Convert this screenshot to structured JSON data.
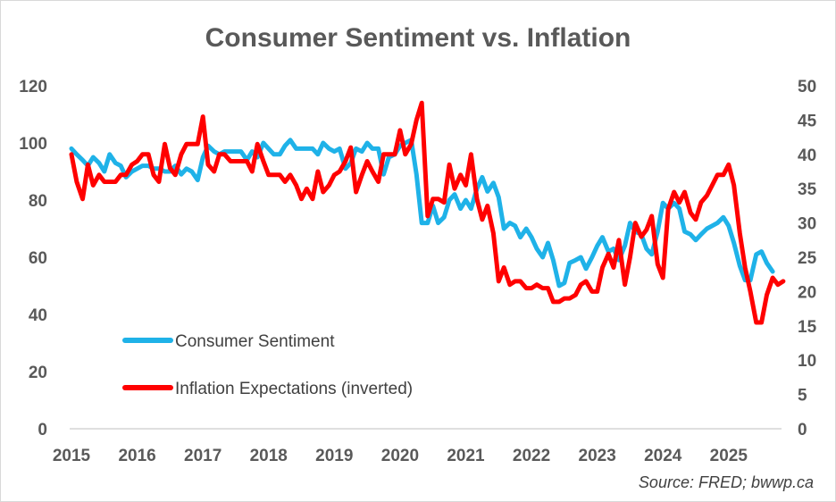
{
  "chart_data": {
    "type": "line",
    "title": "Consumer Sentiment vs. Inflation",
    "source": "Source: FRED; bwwp.ca",
    "x_ticks": [
      "2015",
      "2016",
      "2017",
      "2018",
      "2019",
      "2020",
      "2021",
      "2022",
      "2023",
      "2024",
      "2025"
    ],
    "y_left_ticks": [
      "0",
      "20",
      "40",
      "60",
      "80",
      "100",
      "120"
    ],
    "y_right_ticks": [
      "0",
      "5",
      "10",
      "15",
      "20",
      "25",
      "30",
      "35",
      "40",
      "45",
      "50"
    ],
    "ylim_left": [
      0,
      120
    ],
    "ylim_right": [
      0,
      50
    ],
    "xlim": [
      2015.0,
      2025.75
    ],
    "series": [
      {
        "name": "Consumer Sentiment",
        "axis": "left",
        "color": "#1fb2e8",
        "points": [
          [
            2015.0,
            98
          ],
          [
            2015.08,
            96
          ],
          [
            2015.17,
            94
          ],
          [
            2015.25,
            92
          ],
          [
            2015.33,
            95
          ],
          [
            2015.42,
            93
          ],
          [
            2015.5,
            90
          ],
          [
            2015.58,
            96
          ],
          [
            2015.67,
            93
          ],
          [
            2015.75,
            92
          ],
          [
            2015.83,
            88
          ],
          [
            2015.92,
            90
          ],
          [
            2016.0,
            91
          ],
          [
            2016.08,
            92
          ],
          [
            2016.17,
            92
          ],
          [
            2016.25,
            91
          ],
          [
            2016.33,
            91
          ],
          [
            2016.42,
            90
          ],
          [
            2016.5,
            90
          ],
          [
            2016.58,
            92
          ],
          [
            2016.67,
            89
          ],
          [
            2016.75,
            91
          ],
          [
            2016.83,
            90
          ],
          [
            2016.92,
            87
          ],
          [
            2017.0,
            95
          ],
          [
            2017.08,
            99
          ],
          [
            2017.17,
            97
          ],
          [
            2017.25,
            96
          ],
          [
            2017.33,
            97
          ],
          [
            2017.42,
            97
          ],
          [
            2017.5,
            97
          ],
          [
            2017.58,
            97
          ],
          [
            2017.67,
            94
          ],
          [
            2017.75,
            97
          ],
          [
            2017.83,
            95
          ],
          [
            2017.92,
            100
          ],
          [
            2018.0,
            98
          ],
          [
            2018.08,
            96
          ],
          [
            2018.17,
            96
          ],
          [
            2018.25,
            99
          ],
          [
            2018.33,
            101
          ],
          [
            2018.42,
            98
          ],
          [
            2018.5,
            98
          ],
          [
            2018.58,
            98
          ],
          [
            2018.67,
            98
          ],
          [
            2018.75,
            96
          ],
          [
            2018.83,
            100
          ],
          [
            2018.92,
            98
          ],
          [
            2019.0,
            97
          ],
          [
            2019.08,
            98
          ],
          [
            2019.17,
            91
          ],
          [
            2019.25,
            93
          ],
          [
            2019.33,
            98
          ],
          [
            2019.42,
            97
          ],
          [
            2019.5,
            100
          ],
          [
            2019.58,
            98
          ],
          [
            2019.67,
            98
          ],
          [
            2019.75,
            89
          ],
          [
            2019.83,
            95
          ],
          [
            2019.92,
            96
          ],
          [
            2020.0,
            99
          ],
          [
            2020.08,
            100
          ],
          [
            2020.17,
            101
          ],
          [
            2020.25,
            89
          ],
          [
            2020.33,
            72
          ],
          [
            2020.42,
            72
          ],
          [
            2020.5,
            78
          ],
          [
            2020.58,
            72
          ],
          [
            2020.67,
            74
          ],
          [
            2020.75,
            80
          ],
          [
            2020.83,
            82
          ],
          [
            2020.92,
            77
          ],
          [
            2021.0,
            80
          ],
          [
            2021.08,
            77
          ],
          [
            2021.17,
            84
          ],
          [
            2021.25,
            88
          ],
          [
            2021.33,
            83
          ],
          [
            2021.42,
            86
          ],
          [
            2021.5,
            81
          ],
          [
            2021.58,
            70
          ],
          [
            2021.67,
            72
          ],
          [
            2021.75,
            71
          ],
          [
            2021.83,
            67
          ],
          [
            2021.92,
            70
          ],
          [
            2022.0,
            67
          ],
          [
            2022.08,
            63
          ],
          [
            2022.17,
            60
          ],
          [
            2022.25,
            65
          ],
          [
            2022.33,
            59
          ],
          [
            2022.42,
            50
          ],
          [
            2022.5,
            51
          ],
          [
            2022.58,
            58
          ],
          [
            2022.67,
            59
          ],
          [
            2022.75,
            60
          ],
          [
            2022.83,
            56
          ],
          [
            2022.92,
            60
          ],
          [
            2023.0,
            64
          ],
          [
            2023.08,
            67
          ],
          [
            2023.17,
            62
          ],
          [
            2023.25,
            63
          ],
          [
            2023.33,
            59
          ],
          [
            2023.42,
            64
          ],
          [
            2023.5,
            72
          ],
          [
            2023.58,
            69
          ],
          [
            2023.67,
            68
          ],
          [
            2023.75,
            63
          ],
          [
            2023.83,
            61
          ],
          [
            2023.92,
            69
          ],
          [
            2024.0,
            79
          ],
          [
            2024.08,
            77
          ],
          [
            2024.17,
            79
          ],
          [
            2024.25,
            77
          ],
          [
            2024.33,
            69
          ],
          [
            2024.42,
            68
          ],
          [
            2024.5,
            66
          ],
          [
            2024.58,
            68
          ],
          [
            2024.67,
            70
          ],
          [
            2024.75,
            71
          ],
          [
            2024.83,
            72
          ],
          [
            2024.92,
            74
          ],
          [
            2025.0,
            71
          ],
          [
            2025.08,
            65
          ],
          [
            2025.17,
            57
          ],
          [
            2025.25,
            52
          ],
          [
            2025.33,
            52
          ],
          [
            2025.42,
            61
          ],
          [
            2025.5,
            62
          ],
          [
            2025.58,
            58
          ],
          [
            2025.67,
            55
          ]
        ]
      },
      {
        "name": "Inflation Expectations (inverted)",
        "axis": "right",
        "color": "#ff0000",
        "points": [
          [
            2015.0,
            40
          ],
          [
            2015.08,
            36
          ],
          [
            2015.17,
            33.5
          ],
          [
            2015.25,
            38.5
          ],
          [
            2015.33,
            35.5
          ],
          [
            2015.42,
            37
          ],
          [
            2015.5,
            36
          ],
          [
            2015.58,
            36
          ],
          [
            2015.67,
            36
          ],
          [
            2015.75,
            37
          ],
          [
            2015.83,
            37
          ],
          [
            2015.92,
            38.5
          ],
          [
            2016.0,
            39
          ],
          [
            2016.08,
            40
          ],
          [
            2016.17,
            40
          ],
          [
            2016.25,
            37
          ],
          [
            2016.33,
            36
          ],
          [
            2016.42,
            41.5
          ],
          [
            2016.5,
            38
          ],
          [
            2016.58,
            37
          ],
          [
            2016.67,
            40
          ],
          [
            2016.75,
            41.5
          ],
          [
            2016.83,
            41.5
          ],
          [
            2016.92,
            41.5
          ],
          [
            2017.0,
            45.5
          ],
          [
            2017.08,
            38.5
          ],
          [
            2017.17,
            37.5
          ],
          [
            2017.25,
            40
          ],
          [
            2017.33,
            40
          ],
          [
            2017.42,
            39
          ],
          [
            2017.5,
            39
          ],
          [
            2017.58,
            39
          ],
          [
            2017.67,
            39
          ],
          [
            2017.75,
            37.5
          ],
          [
            2017.83,
            41.5
          ],
          [
            2017.92,
            39
          ],
          [
            2018.0,
            37
          ],
          [
            2018.08,
            37
          ],
          [
            2018.17,
            37
          ],
          [
            2018.25,
            36
          ],
          [
            2018.33,
            37
          ],
          [
            2018.42,
            35.5
          ],
          [
            2018.5,
            33.5
          ],
          [
            2018.58,
            35
          ],
          [
            2018.67,
            33.5
          ],
          [
            2018.75,
            37.5
          ],
          [
            2018.83,
            34.5
          ],
          [
            2018.92,
            35.5
          ],
          [
            2019.0,
            37
          ],
          [
            2019.08,
            37.5
          ],
          [
            2019.17,
            39
          ],
          [
            2019.25,
            41
          ],
          [
            2019.33,
            34.5
          ],
          [
            2019.42,
            37
          ],
          [
            2019.5,
            39
          ],
          [
            2019.58,
            37.5
          ],
          [
            2019.67,
            36
          ],
          [
            2019.75,
            40
          ],
          [
            2019.83,
            40
          ],
          [
            2019.92,
            40
          ],
          [
            2020.0,
            43.5
          ],
          [
            2020.08,
            40
          ],
          [
            2020.17,
            41.5
          ],
          [
            2020.25,
            45
          ],
          [
            2020.33,
            47.5
          ],
          [
            2020.42,
            31
          ],
          [
            2020.5,
            33.5
          ],
          [
            2020.58,
            33.5
          ],
          [
            2020.67,
            33
          ],
          [
            2020.75,
            38.5
          ],
          [
            2020.83,
            35
          ],
          [
            2020.92,
            37
          ],
          [
            2021.0,
            35.5
          ],
          [
            2021.08,
            40
          ],
          [
            2021.17,
            33.5
          ],
          [
            2021.25,
            30.5
          ],
          [
            2021.33,
            32.5
          ],
          [
            2021.42,
            28.5
          ],
          [
            2021.5,
            21.5
          ],
          [
            2021.58,
            23.5
          ],
          [
            2021.67,
            21
          ],
          [
            2021.75,
            21.5
          ],
          [
            2021.83,
            21.5
          ],
          [
            2021.92,
            20.5
          ],
          [
            2022.0,
            20.5
          ],
          [
            2022.08,
            21
          ],
          [
            2022.17,
            20.5
          ],
          [
            2022.25,
            20.5
          ],
          [
            2022.33,
            18.5
          ],
          [
            2022.42,
            18.5
          ],
          [
            2022.5,
            19
          ],
          [
            2022.58,
            19
          ],
          [
            2022.67,
            19.5
          ],
          [
            2022.75,
            21
          ],
          [
            2022.83,
            21.5
          ],
          [
            2022.92,
            20
          ],
          [
            2023.0,
            20
          ],
          [
            2023.08,
            23.5
          ],
          [
            2023.17,
            25.5
          ],
          [
            2023.25,
            23.5
          ],
          [
            2023.33,
            27.5
          ],
          [
            2023.42,
            21
          ],
          [
            2023.5,
            25
          ],
          [
            2023.58,
            30
          ],
          [
            2023.67,
            28
          ],
          [
            2023.75,
            29
          ],
          [
            2023.83,
            31
          ],
          [
            2023.92,
            24
          ],
          [
            2024.0,
            22
          ],
          [
            2024.08,
            32
          ],
          [
            2024.17,
            34.5
          ],
          [
            2024.25,
            33
          ],
          [
            2024.33,
            34.5
          ],
          [
            2024.42,
            31.5
          ],
          [
            2024.5,
            30.5
          ],
          [
            2024.58,
            33
          ],
          [
            2024.67,
            34
          ],
          [
            2024.75,
            35.5
          ],
          [
            2024.83,
            37
          ],
          [
            2024.92,
            37
          ],
          [
            2025.0,
            38.5
          ],
          [
            2025.08,
            35.5
          ],
          [
            2025.17,
            28.5
          ],
          [
            2025.25,
            23.5
          ],
          [
            2025.33,
            20
          ],
          [
            2025.42,
            15.5
          ],
          [
            2025.5,
            15.5
          ],
          [
            2025.58,
            19.5
          ],
          [
            2025.67,
            22
          ],
          [
            2025.75,
            21
          ],
          [
            2025.83,
            21.5
          ]
        ]
      }
    ],
    "legend": [
      {
        "label": "Consumer Sentiment",
        "color": "#1fb2e8"
      },
      {
        "label": "Inflation Expectations (inverted)",
        "color": "#ff0000"
      }
    ]
  }
}
